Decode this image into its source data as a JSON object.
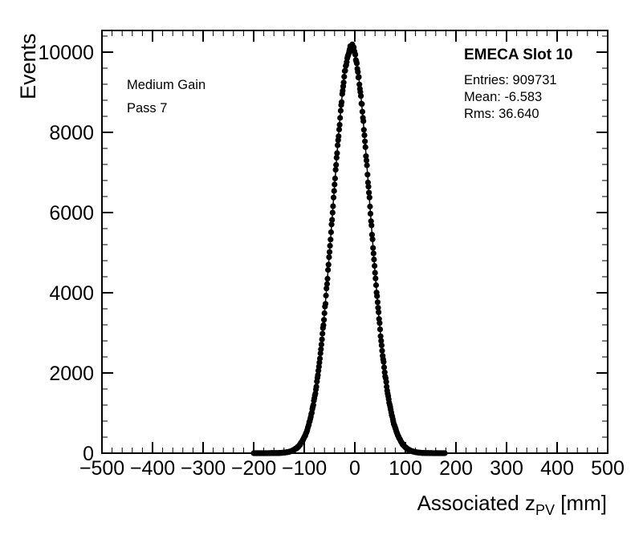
{
  "chart_data": {
    "type": "scatter",
    "title": "",
    "xlabel": "Associated z_PV [mm]",
    "xlabel_main": "Associated z",
    "xlabel_sub": "PV",
    "xlabel_unit": " [mm]",
    "ylabel": "Events",
    "xlim": [
      -500,
      500
    ],
    "ylim": [
      0,
      10540
    ],
    "x_major_ticks": [
      -500,
      -400,
      -300,
      -200,
      -100,
      0,
      100,
      200,
      300,
      400,
      500
    ],
    "x_tick_labels": [
      "−500",
      "−400",
      "−300",
      "−200",
      "−100",
      "0",
      "100",
      "200",
      "300",
      "400",
      "500"
    ],
    "x_minor_step": 20,
    "y_major_ticks": [
      0,
      2000,
      4000,
      6000,
      8000,
      10000
    ],
    "y_tick_labels": [
      "0",
      "2000",
      "4000",
      "6000",
      "8000",
      "10000"
    ],
    "y_minor_step": 400,
    "grid": false,
    "marker": {
      "shape": "circle",
      "color": "#000000",
      "radius": 3.6
    },
    "fit_line_color": "#000000",
    "distribution": {
      "shape": "gaussian",
      "mean": -6.583,
      "sigma": 36.64,
      "amplitude": 10120,
      "x_min": -200,
      "x_max": 178,
      "bin_width": 1
    }
  },
  "annotations": {
    "detector_label": "EMECA Slot 10",
    "stats": {
      "entries": "Entries: 909731",
      "mean": "Mean: -6.583",
      "rms": "Rms: 36.640"
    },
    "gain_label": "Medium Gain",
    "pass_label": "Pass 7"
  }
}
